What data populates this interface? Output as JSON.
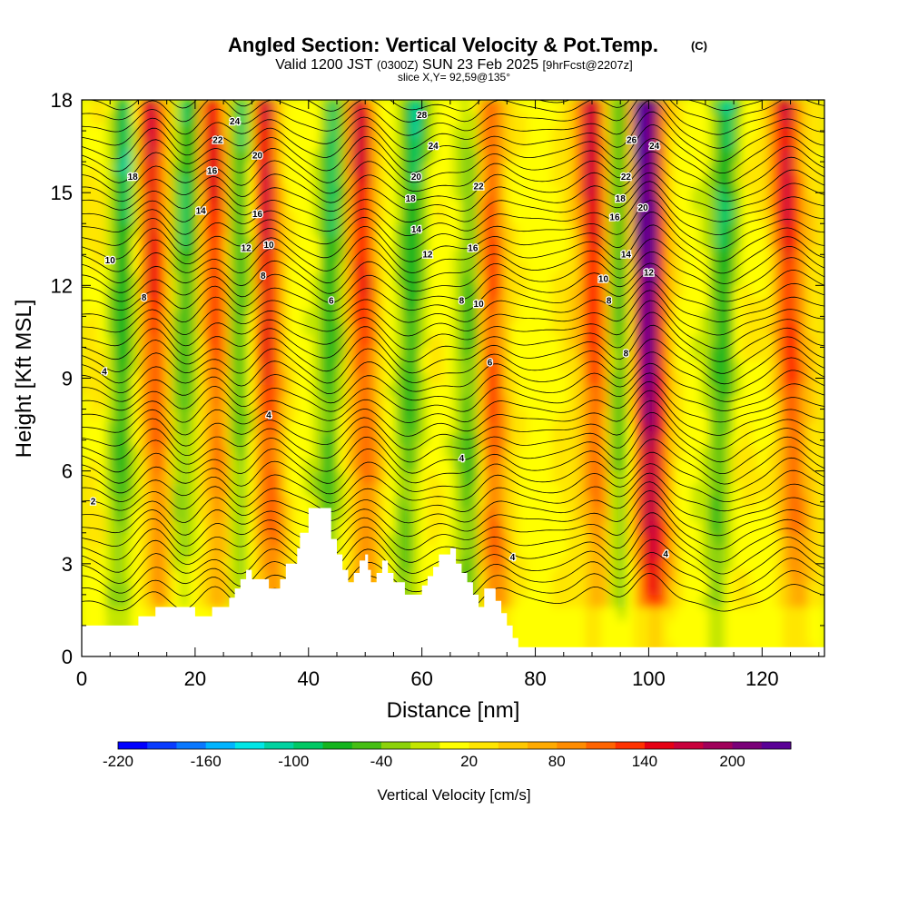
{
  "title": {
    "main": "Angled Section: Vertical Velocity & Pot.Temp.",
    "copyright": "(C)",
    "valid_prefix": "Valid 1200 JST",
    "valid_utc": "(0300Z)",
    "valid_date": "SUN 23 Feb 2025",
    "forecast": "[9hrFcst@2207z]",
    "slice": "slice X,Y= 92,59@135°"
  },
  "chart_data": {
    "type": "heatmap",
    "xlabel": "Distance [nm]",
    "ylabel": "Height [Kft MSL]",
    "xlim": [
      0,
      131
    ],
    "ylim": [
      0,
      18
    ],
    "x_ticks": [
      0,
      20,
      40,
      60,
      80,
      100,
      120
    ],
    "y_ticks": [
      0,
      3,
      6,
      9,
      12,
      15,
      18
    ],
    "colorbar": {
      "label": "Vertical Velocity [cm/s]",
      "tick_labels": [
        "-220",
        "-160",
        "-100",
        "-40",
        "20",
        "80",
        "140",
        "200"
      ],
      "tick_values": [
        -220,
        -160,
        -100,
        -40,
        20,
        80,
        140,
        200
      ],
      "range": [
        -220,
        240
      ],
      "step": 20,
      "colors": [
        "#0000ff",
        "#0a3cff",
        "#0a78ff",
        "#00b4ff",
        "#00e6e6",
        "#00d2a0",
        "#00c864",
        "#14b41e",
        "#46be14",
        "#8cd20a",
        "#c3e600",
        "#ffff00",
        "#ffe600",
        "#ffc800",
        "#ffaa00",
        "#ff8c00",
        "#ff6400",
        "#ff3200",
        "#e60014",
        "#c8003c",
        "#a0005a",
        "#7a0078",
        "#5a0096"
      ]
    },
    "terrain_profile_kft": [
      [
        0,
        1.0
      ],
      [
        10,
        1.0
      ],
      [
        10,
        1.3
      ],
      [
        13,
        1.3
      ],
      [
        13,
        1.6
      ],
      [
        20,
        1.6
      ],
      [
        20,
        1.3
      ],
      [
        23,
        1.3
      ],
      [
        23,
        1.6
      ],
      [
        26,
        1.6
      ],
      [
        26,
        1.9
      ],
      [
        27,
        1.9
      ],
      [
        27,
        2.2
      ],
      [
        28,
        2.2
      ],
      [
        28,
        2.5
      ],
      [
        29,
        2.5
      ],
      [
        29,
        2.8
      ],
      [
        30,
        2.8
      ],
      [
        30,
        2.5
      ],
      [
        33,
        2.5
      ],
      [
        33,
        2.2
      ],
      [
        35,
        2.2
      ],
      [
        35,
        2.5
      ],
      [
        36,
        2.5
      ],
      [
        36,
        3.0
      ],
      [
        38,
        3.0
      ],
      [
        38,
        3.5
      ],
      [
        38.5,
        3.5
      ],
      [
        38.5,
        4.0
      ],
      [
        40,
        4.0
      ],
      [
        40,
        4.8
      ],
      [
        44,
        4.8
      ],
      [
        44,
        3.8
      ],
      [
        45,
        3.8
      ],
      [
        45,
        3.3
      ],
      [
        46,
        3.3
      ],
      [
        46,
        2.8
      ],
      [
        47,
        2.8
      ],
      [
        47,
        2.4
      ],
      [
        48,
        2.4
      ],
      [
        48,
        2.7
      ],
      [
        49,
        2.7
      ],
      [
        49,
        3.1
      ],
      [
        50,
        3.1
      ],
      [
        50,
        3.3
      ],
      [
        50.5,
        3.3
      ],
      [
        50.5,
        2.8
      ],
      [
        51,
        2.8
      ],
      [
        51,
        2.4
      ],
      [
        52,
        2.4
      ],
      [
        52,
        2.7
      ],
      [
        53,
        2.7
      ],
      [
        53,
        3.1
      ],
      [
        54,
        3.1
      ],
      [
        54,
        2.7
      ],
      [
        55,
        2.7
      ],
      [
        55,
        2.4
      ],
      [
        57,
        2.4
      ],
      [
        57,
        2.0
      ],
      [
        60,
        2.0
      ],
      [
        60,
        2.3
      ],
      [
        61,
        2.3
      ],
      [
        61,
        2.6
      ],
      [
        62,
        2.6
      ],
      [
        62,
        2.9
      ],
      [
        63,
        2.9
      ],
      [
        63,
        3.3
      ],
      [
        65,
        3.3
      ],
      [
        65,
        3.5
      ],
      [
        66,
        3.5
      ],
      [
        66,
        3.0
      ],
      [
        67,
        3.0
      ],
      [
        67,
        2.7
      ],
      [
        68,
        2.7
      ],
      [
        68,
        2.4
      ],
      [
        69,
        2.4
      ],
      [
        69,
        2.0
      ],
      [
        70,
        2.0
      ],
      [
        70,
        1.6
      ],
      [
        71,
        1.6
      ],
      [
        71,
        2.2
      ],
      [
        73,
        2.2
      ],
      [
        73,
        1.8
      ],
      [
        74,
        1.8
      ],
      [
        74,
        1.4
      ],
      [
        75,
        1.4
      ],
      [
        75,
        1.0
      ],
      [
        76,
        1.0
      ],
      [
        76,
        0.6
      ],
      [
        77,
        0.6
      ],
      [
        77,
        0.3
      ],
      [
        131,
        0.3
      ]
    ],
    "updraft_cores_nm": [
      13,
      24,
      33,
      50,
      72,
      91,
      99,
      101,
      125
    ],
    "downdraft_cores_nm": [
      7,
      18,
      28,
      44,
      58,
      69,
      95,
      113
    ],
    "theta_contour_labels": [
      "2",
      "4",
      "6",
      "8",
      "10",
      "12",
      "14",
      "16",
      "18",
      "20",
      "22",
      "24",
      "26",
      "28"
    ]
  }
}
